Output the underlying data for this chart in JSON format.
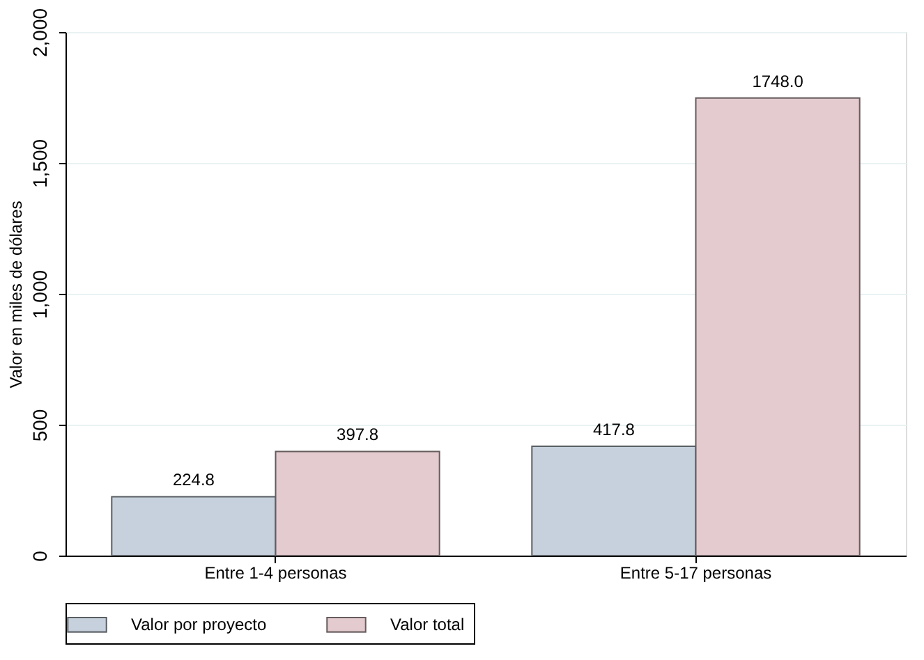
{
  "chart_data": {
    "type": "bar",
    "ylabel": "Valor en miles de dólares",
    "categories": [
      "Entre 1-4 personas",
      "Entre 5-17 personas"
    ],
    "series": [
      {
        "name": "Valor por proyecto",
        "color": "#c6d1dd",
        "values": [
          224.8,
          417.8
        ],
        "value_labels": [
          "224.8",
          "417.8"
        ]
      },
      {
        "name": "Valor total",
        "color": "#e3cbcf",
        "values": [
          397.8,
          1748.0
        ],
        "value_labels": [
          "397.8",
          "1748.0"
        ]
      }
    ],
    "ylim": [
      0,
      2000
    ],
    "yticks": [
      {
        "value": 0,
        "label": "0"
      },
      {
        "value": 500,
        "label": "500"
      },
      {
        "value": 1000,
        "label": "1,000"
      },
      {
        "value": 1500,
        "label": "1,500"
      },
      {
        "value": 2000,
        "label": "2,000"
      }
    ],
    "grid": "y",
    "legend": "bottom"
  }
}
